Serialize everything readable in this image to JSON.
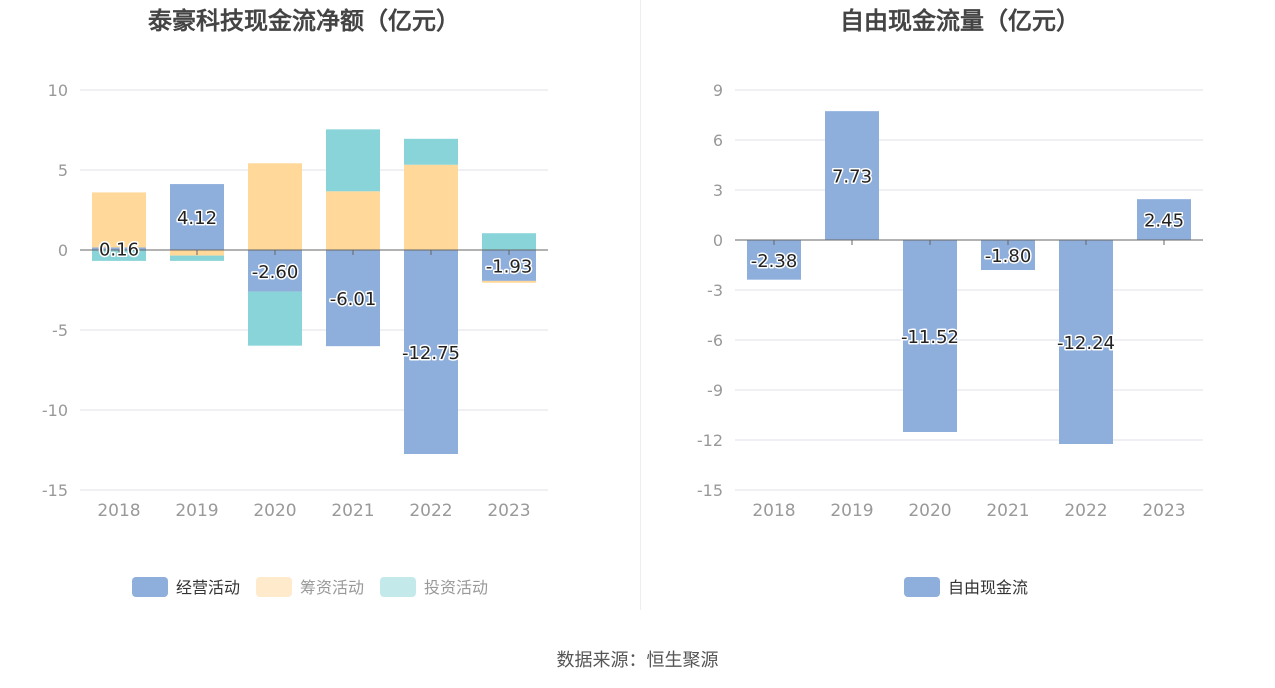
{
  "source_text": "数据来源：恒生聚源",
  "colors": {
    "operating": "#8eaedb",
    "financing": "#ffd89a",
    "investing": "#88d4d8",
    "free_cash_flow": "#8eaedb",
    "grid": "#e0e0ea",
    "axis": "#666666",
    "tick_text": "#999999",
    "title_text": "#444444"
  },
  "chart_data": [
    {
      "type": "bar",
      "stacked": true,
      "title": "泰豪科技现金流净额（亿元）",
      "categories": [
        "2018",
        "2019",
        "2020",
        "2021",
        "2022",
        "2023"
      ],
      "ylim": [
        -15,
        10
      ],
      "yticks": [
        10,
        5,
        0,
        -5,
        -10,
        -15
      ],
      "grid": true,
      "legend_position": "bottom",
      "series": [
        {
          "name": "经营活动",
          "color_key": "operating",
          "values": [
            0.16,
            4.12,
            -2.6,
            -6.01,
            -12.75,
            -1.93
          ]
        },
        {
          "name": "筹资活动",
          "color_key": "financing",
          "values": [
            3.44,
            -0.35,
            5.42,
            3.67,
            5.33,
            -0.12
          ]
        },
        {
          "name": "投资活动",
          "color_key": "investing",
          "values": [
            -0.68,
            -0.33,
            -3.38,
            3.87,
            1.62,
            1.05
          ]
        }
      ],
      "data_labels": [
        "0.16",
        "4.12",
        "-2.60",
        "-6.01",
        "-12.75",
        "-1.93"
      ]
    },
    {
      "type": "bar",
      "title": "自由现金流量（亿元）",
      "categories": [
        "2018",
        "2019",
        "2020",
        "2021",
        "2022",
        "2023"
      ],
      "ylim": [
        -15,
        9
      ],
      "yticks": [
        9,
        6,
        3,
        0,
        -3,
        -6,
        -9,
        -12,
        -15
      ],
      "grid": true,
      "legend_position": "bottom",
      "series": [
        {
          "name": "自由现金流",
          "color_key": "free_cash_flow",
          "values": [
            -2.38,
            7.73,
            -11.52,
            -1.8,
            -12.24,
            2.45
          ]
        }
      ],
      "data_labels": [
        "-2.38",
        "7.73",
        "-11.52",
        "-1.80",
        "-12.24",
        "2.45"
      ]
    }
  ]
}
